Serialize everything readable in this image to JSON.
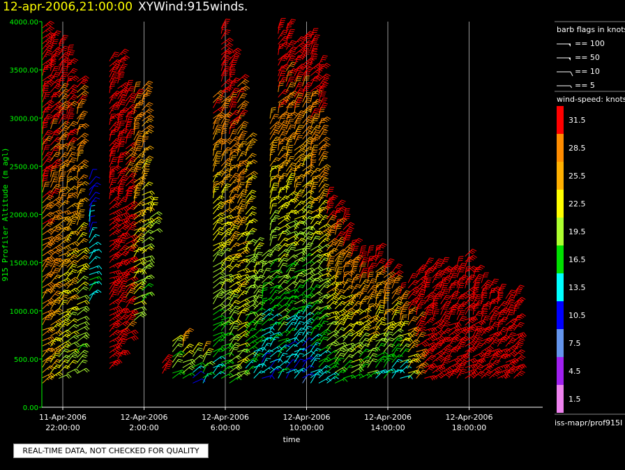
{
  "header": {
    "timestamp": "12-apr-2006,21:00:00",
    "dataset": "XYWind:915winds."
  },
  "chart_data": {
    "type": "scatter",
    "ylabel": "915 Profiler Altitude (m agl)",
    "xlabel": "time",
    "ylim": [
      0,
      4000
    ],
    "y_ticks": [
      "0.00",
      "500.00",
      "1000.00",
      "1500.00",
      "2000.00",
      "2500.00",
      "3000.00",
      "3500.00",
      "4000.00"
    ],
    "x_ticks": [
      {
        "date": "11-Apr-2006",
        "time": "22:00:00"
      },
      {
        "date": "12-Apr-2006",
        "time": "2:00:00"
      },
      {
        "date": "12-Apr-2006",
        "time": "6:00:00"
      },
      {
        "date": "12-Apr-2006",
        "time": "10:00:00"
      },
      {
        "date": "12-Apr-2006",
        "time": "14:00:00"
      },
      {
        "date": "12-Apr-2006",
        "time": "18:00:00"
      }
    ],
    "grid": "vertical lines at x ticks",
    "series": "wind barbs colored by speed",
    "profiles": [
      {
        "hour": 21.0,
        "low": 250,
        "high": 3950,
        "spd_low": 26,
        "spd_high": 34
      },
      {
        "hour": 21.4,
        "low": 300,
        "high": 3850,
        "spd_low": 24,
        "spd_high": 34
      },
      {
        "hour": 21.8,
        "low": 300,
        "high": 3800,
        "spd_low": 21,
        "spd_high": 33
      },
      {
        "hour": 22.2,
        "low": 350,
        "high": 3700,
        "spd_low": 20,
        "spd_high": 33
      },
      {
        "hour": 22.7,
        "low": 350,
        "high": 3400,
        "spd_low": 18,
        "spd_high": 31
      },
      {
        "hour": 23.3,
        "low": 1100,
        "high": 2400,
        "spd_low": 15,
        "spd_high": 10
      },
      {
        "hour": 24.3,
        "low": 400,
        "high": 3600,
        "spd_low": 34,
        "spd_high": 33
      },
      {
        "hour": 24.7,
        "low": 500,
        "high": 3650,
        "spd_low": 33,
        "spd_high": 33
      },
      {
        "hour": 25.1,
        "low": 700,
        "high": 3300,
        "spd_low": 31,
        "spd_high": 31
      },
      {
        "hour": 25.5,
        "low": 900,
        "high": 3300,
        "spd_low": 20,
        "spd_high": 30
      },
      {
        "hour": 25.9,
        "low": 1100,
        "high": 3300,
        "spd_low": 18,
        "spd_high": 29
      },
      {
        "hour": 26.3,
        "low": 1800,
        "high": 2100,
        "spd_low": 21,
        "spd_high": 21
      },
      {
        "hour": 26.9,
        "low": 350,
        "high": 500,
        "spd_low": 33,
        "spd_high": 33
      },
      {
        "hour": 27.4,
        "low": 300,
        "high": 700,
        "spd_low": 18,
        "spd_high": 20
      },
      {
        "hour": 27.9,
        "low": 300,
        "high": 750,
        "spd_low": 17,
        "spd_high": 28
      },
      {
        "hour": 28.4,
        "low": 250,
        "high": 600,
        "spd_low": 10,
        "spd_high": 22
      },
      {
        "hour": 28.9,
        "low": 250,
        "high": 600,
        "spd_low": 12,
        "spd_high": 26
      },
      {
        "hour": 29.4,
        "low": 300,
        "high": 3250,
        "spd_low": 14,
        "spd_high": 30
      },
      {
        "hour": 29.8,
        "low": 300,
        "high": 3950,
        "spd_low": 15,
        "spd_high": 34
      },
      {
        "hour": 30.2,
        "low": 250,
        "high": 3700,
        "spd_low": 18,
        "spd_high": 33
      },
      {
        "hour": 30.6,
        "low": 300,
        "high": 3400,
        "spd_low": 20,
        "spd_high": 30
      },
      {
        "hour": 31.0,
        "low": 350,
        "high": 2800,
        "spd_low": 16,
        "spd_high": 26
      },
      {
        "hour": 31.4,
        "low": 300,
        "high": 1700,
        "spd_low": 14,
        "spd_high": 22
      },
      {
        "hour": 31.8,
        "low": 300,
        "high": 1600,
        "spd_low": 12,
        "spd_high": 20
      },
      {
        "hour": 32.2,
        "low": 300,
        "high": 3000,
        "spd_low": 12,
        "spd_high": 27
      },
      {
        "hour": 32.6,
        "low": 300,
        "high": 3950,
        "spd_low": 14,
        "spd_high": 34
      },
      {
        "hour": 33.0,
        "low": 300,
        "high": 3950,
        "spd_low": 11,
        "spd_high": 34
      },
      {
        "hour": 33.4,
        "low": 300,
        "high": 3800,
        "spd_low": 12,
        "spd_high": 34
      },
      {
        "hour": 33.8,
        "low": 250,
        "high": 3850,
        "spd_low": 10,
        "spd_high": 34
      },
      {
        "hour": 34.2,
        "low": 250,
        "high": 3850,
        "spd_low": 13,
        "spd_high": 34
      },
      {
        "hour": 34.6,
        "low": 250,
        "high": 3600,
        "spd_low": 14,
        "spd_high": 34
      },
      {
        "hour": 35.0,
        "low": 250,
        "high": 2200,
        "spd_low": 15,
        "spd_high": 33
      },
      {
        "hour": 35.4,
        "low": 250,
        "high": 2100,
        "spd_low": 16,
        "spd_high": 33
      },
      {
        "hour": 35.8,
        "low": 300,
        "high": 2000,
        "spd_low": 17,
        "spd_high": 33
      },
      {
        "hour": 36.2,
        "low": 300,
        "high": 1700,
        "spd_low": 18,
        "spd_high": 33
      },
      {
        "hour": 36.6,
        "low": 300,
        "high": 1600,
        "spd_low": 16,
        "spd_high": 33
      },
      {
        "hour": 37.0,
        "low": 300,
        "high": 1600,
        "spd_low": 18,
        "spd_high": 33
      },
      {
        "hour": 37.4,
        "low": 300,
        "high": 1650,
        "spd_low": 14,
        "spd_high": 33
      },
      {
        "hour": 37.8,
        "low": 300,
        "high": 1500,
        "spd_low": 15,
        "spd_high": 33
      },
      {
        "hour": 38.2,
        "low": 300,
        "high": 1400,
        "spd_low": 12,
        "spd_high": 32
      },
      {
        "hour": 38.6,
        "low": 300,
        "high": 1200,
        "spd_low": 14,
        "spd_high": 32
      },
      {
        "hour": 39.0,
        "low": 300,
        "high": 1300,
        "spd_low": 22,
        "spd_high": 32
      },
      {
        "hour": 39.4,
        "low": 300,
        "high": 1450,
        "spd_low": 28,
        "spd_high": 33
      },
      {
        "hour": 39.8,
        "low": 300,
        "high": 1500,
        "spd_low": 33,
        "spd_high": 33
      },
      {
        "hour": 40.2,
        "low": 300,
        "high": 1500,
        "spd_low": 33,
        "spd_high": 33
      },
      {
        "hour": 40.6,
        "low": 300,
        "high": 1500,
        "spd_low": 33,
        "spd_high": 33
      },
      {
        "hour": 41.0,
        "low": 300,
        "high": 1450,
        "spd_low": 33,
        "spd_high": 33
      },
      {
        "hour": 41.4,
        "low": 300,
        "high": 1500,
        "spd_low": 33,
        "spd_high": 33
      },
      {
        "hour": 41.8,
        "low": 300,
        "high": 1600,
        "spd_low": 33,
        "spd_high": 33
      },
      {
        "hour": 42.2,
        "low": 300,
        "high": 1400,
        "spd_low": 33,
        "spd_high": 33
      },
      {
        "hour": 42.6,
        "low": 300,
        "high": 1300,
        "spd_low": 33,
        "spd_high": 33
      },
      {
        "hour": 43.0,
        "low": 300,
        "high": 1250,
        "spd_low": 33,
        "spd_high": 33
      },
      {
        "hour": 43.4,
        "low": 300,
        "high": 1200,
        "spd_low": 33,
        "spd_high": 33
      },
      {
        "hour": 43.8,
        "low": 300,
        "high": 1150,
        "spd_low": 33,
        "spd_high": 33
      },
      {
        "hour": 44.2,
        "low": 300,
        "high": 1200,
        "spd_low": 33,
        "spd_high": 33
      }
    ]
  },
  "legend": {
    "barb_title": "barb flags in knots",
    "barbs": [
      {
        "label": "== 100",
        "kind": "pennant"
      },
      {
        "label": "== 50",
        "kind": "pennant"
      },
      {
        "label": "== 10",
        "kind": "full"
      },
      {
        "label": "== 5",
        "kind": "half"
      }
    ],
    "speed_title": "wind-speed: knots",
    "speeds": [
      {
        "label": "31.5",
        "color": "#ff0000"
      },
      {
        "label": "28.5",
        "color": "#ff8c00"
      },
      {
        "label": "25.5",
        "color": "#ffb000"
      },
      {
        "label": "22.5",
        "color": "#ffff00"
      },
      {
        "label": "19.5",
        "color": "#adff2f"
      },
      {
        "label": "16.5",
        "color": "#00e000"
      },
      {
        "label": "13.5",
        "color": "#00ffff"
      },
      {
        "label": "10.5",
        "color": "#0000ff"
      },
      {
        "label": "7.5",
        "color": "#6495ed"
      },
      {
        "label": "4.5",
        "color": "#a020f0"
      },
      {
        "label": "1.5",
        "color": "#ee82ee"
      }
    ],
    "source": "iss-mapr/prof915I"
  },
  "footer": {
    "qc_notice": "REAL-TIME DATA, NOT CHECKED FOR QUALITY"
  }
}
